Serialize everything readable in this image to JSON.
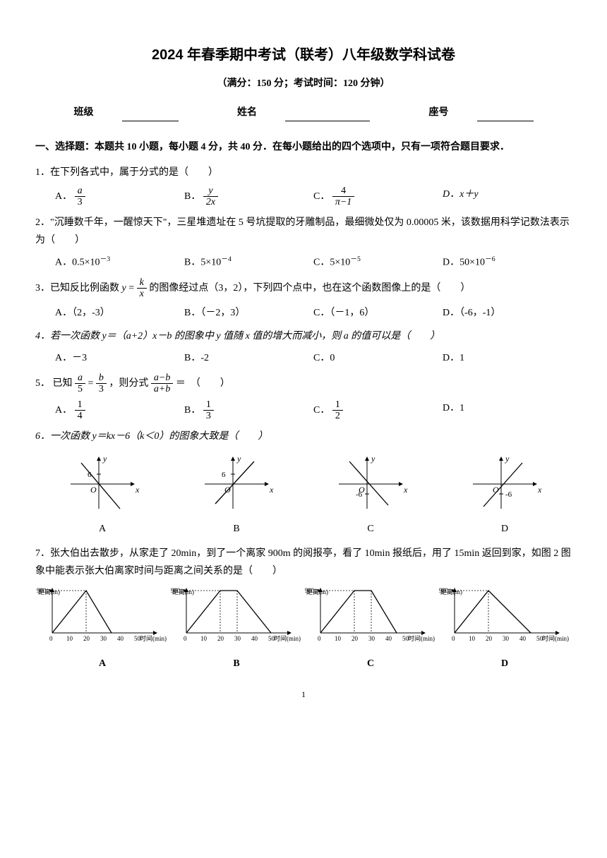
{
  "title": "2024 年春季期中考试（联考）八年级数学科试卷",
  "subtitle": "（满分：150 分；考试时间：120 分钟）",
  "fill": {
    "class": "班级",
    "name": "姓名",
    "seat": "座号"
  },
  "section1": "一、选择题：本题共 10 小题，每小题 4 分，共 40 分．在每小题给出的四个选项中，只有一项符合题目要求．",
  "q1": {
    "text": "1．在下列各式中，属于分式的是（　　）",
    "A": "A．",
    "B": "B．",
    "C": "C．",
    "D_full": "D．x＋y",
    "fA": {
      "n": "a",
      "d": "3"
    },
    "fB": {
      "n": "y",
      "d": "2x"
    },
    "fC": {
      "n": "4",
      "d": "π−1"
    }
  },
  "q2": {
    "text": "2．\"沉睡数千年，一醒惊天下\"，三星堆遗址在 5 号坑提取的牙雕制品，最细微处仅为 0.00005 米，该数据用科学记数法表示为（　　）",
    "A": "A．0.5×10",
    "Aexp": "－3",
    "B": "B．5×10",
    "Bexp": "－4",
    "C": "C．5×10",
    "Cexp": "－5",
    "D": "D．50×10",
    "Dexp": "－6"
  },
  "q3": {
    "text_a": "3．已知反比例函数 ",
    "text_b": " 的图像经过点（3，2），下列四个点中，也在这个函数图像上的是（　　）",
    "f": {
      "n": "k",
      "d": "x"
    },
    "A": "A．（2，-3）",
    "B": "B．（－2，3）",
    "C": "C．（－1，6）",
    "D": "D．（-6，-1）"
  },
  "q4": {
    "text": "4．若一次函数 y＝（a+2）x－b 的图象中 y 值随 x 值的增大而减小，则 a 的值可以是（　　）",
    "A": "A．－3",
    "B": "B．-2",
    "C": "C．0",
    "D": "D．1"
  },
  "q5": {
    "text_a": "5． 已知",
    "text_b": "，则分式",
    "text_c": "＝　（　　）",
    "fL1": {
      "n": "a",
      "d": "5"
    },
    "fL2": {
      "n": "b",
      "d": "3"
    },
    "fR": {
      "n": "a−b",
      "d": "a+b"
    },
    "A": "A．",
    "fA": {
      "n": "1",
      "d": "4"
    },
    "B": "B．",
    "fB": {
      "n": "1",
      "d": "3"
    },
    "C": "C．",
    "fC": {
      "n": "1",
      "d": "2"
    },
    "D": "D．1"
  },
  "q6": {
    "text": "6．一次函数 y＝kx－6（k＜0）的图象大致是（　　）",
    "labels": [
      "A",
      "B",
      "C",
      "D"
    ],
    "axis": {
      "xlabel": "x",
      "ylabel": "y",
      "origin": "O"
    },
    "marks": {
      "pos6": "6",
      "neg6": "-6"
    }
  },
  "q7": {
    "text": "7．张大伯出去散步，从家走了 20min，到了一个离家 900m 的阅报亭，看了 10min 报纸后，用了 15min 返回到家，如图 2 图象中能表示张大伯离家时间与距离之间关系的是（　　）",
    "labels": [
      "A",
      "B",
      "C",
      "D"
    ],
    "xlabel": "时间(min)",
    "ylabel": "距离(m)",
    "ymax_label": "900",
    "xticks": [
      "0",
      "10",
      "20",
      "30",
      "40",
      "50"
    ],
    "curves": {
      "A": [
        [
          0,
          0
        ],
        [
          20,
          900
        ],
        [
          35,
          0
        ]
      ],
      "B": [
        [
          0,
          0
        ],
        [
          20,
          900
        ],
        [
          30,
          900
        ],
        [
          50,
          0
        ]
      ],
      "C": [
        [
          0,
          0
        ],
        [
          20,
          900
        ],
        [
          30,
          900
        ],
        [
          45,
          0
        ]
      ],
      "D": [
        [
          0,
          0
        ],
        [
          20,
          900
        ],
        [
          45,
          0
        ]
      ]
    },
    "scale": {
      "xmax": 50,
      "ymax": 900,
      "w": 120,
      "h": 60,
      "ox": 22,
      "oy": 65
    }
  },
  "colors": {
    "fg": "#000000",
    "bg": "#ffffff"
  },
  "pagenum": "1"
}
